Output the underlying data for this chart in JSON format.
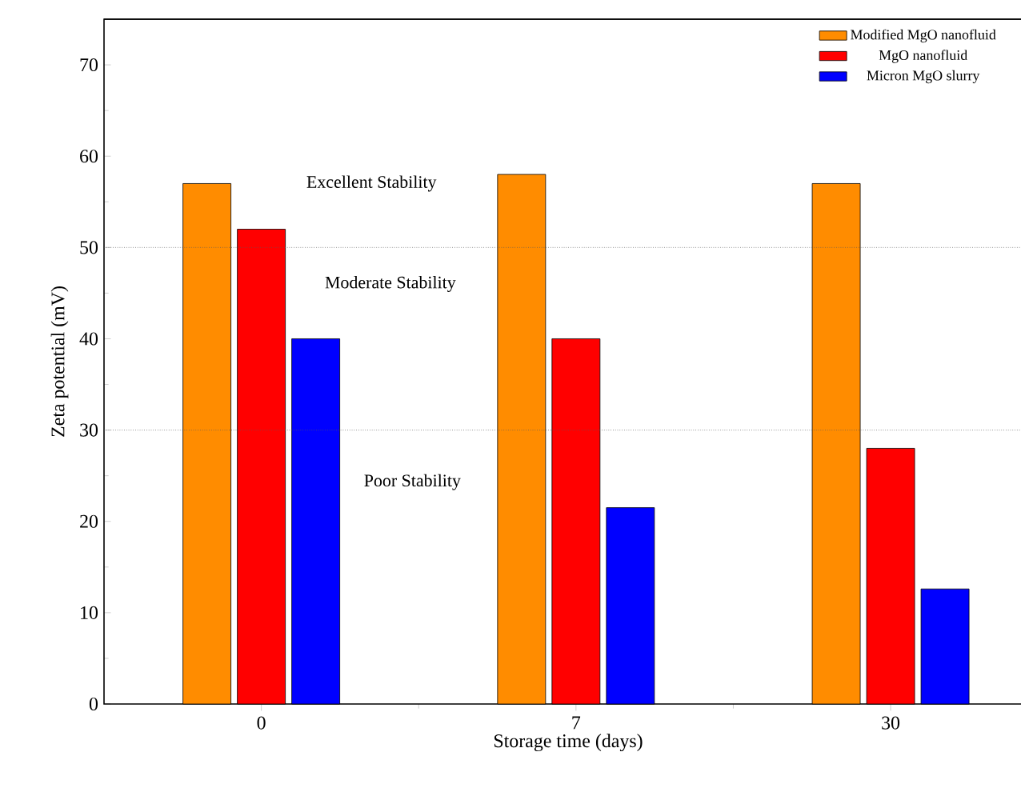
{
  "chart_data": {
    "type": "bar",
    "xlabel": "Storage time (days)",
    "ylabel": "Zeta potential (mV)",
    "categories": [
      "0",
      "7",
      "30"
    ],
    "series": [
      {
        "name": "Modified MgO nanofluid",
        "color": "#ff8c00",
        "values": [
          57,
          58,
          57
        ]
      },
      {
        "name": "MgO nanofluid",
        "color": "#ff0000",
        "values": [
          52,
          40,
          28
        ]
      },
      {
        "name": "Micron MgO slurry",
        "color": "#0000ff",
        "values": [
          40,
          21.5,
          12.6
        ]
      }
    ],
    "ylim": [
      0,
      75
    ],
    "yticks": [
      0,
      10,
      20,
      30,
      40,
      50,
      60,
      70
    ],
    "ref_lines": [
      {
        "axis": "y",
        "value": 50,
        "line_style": "dotted"
      },
      {
        "axis": "y",
        "value": 30,
        "line_style": "dotted"
      }
    ],
    "annotations": [
      "Excellent Stability",
      "Moderate Stability",
      "Poor Stability"
    ],
    "legend": "top right",
    "grid": false
  }
}
